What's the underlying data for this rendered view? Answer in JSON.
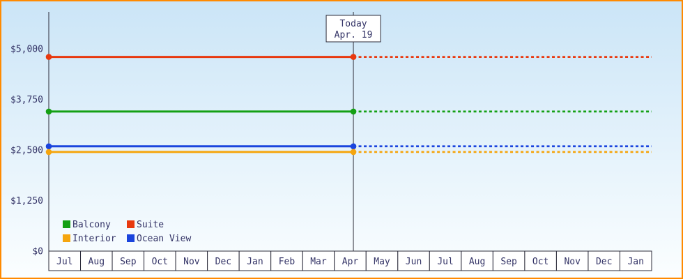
{
  "frame": {
    "border_color": "#ff8a00",
    "background_top": "#cbe5f7",
    "background_bottom": "#fbfeff",
    "text_color": "#333366",
    "axis_color": "#2b2b3a",
    "cell_fill": "#ffffff"
  },
  "chart_data": {
    "type": "line",
    "title": "",
    "xlabel": "",
    "ylabel": "",
    "x_labels": [
      "Jul",
      "Aug",
      "Sep",
      "Oct",
      "Nov",
      "Dec",
      "Jan",
      "Feb",
      "Mar",
      "Apr",
      "May",
      "Jun",
      "Jul",
      "Aug",
      "Sep",
      "Oct",
      "Nov",
      "Dec",
      "Jan"
    ],
    "ylim": [
      0,
      5000
    ],
    "y_ticks": [
      {
        "label": "$0",
        "value": 0
      },
      {
        "label": "$1,250",
        "value": 1250
      },
      {
        "label": "$2,500",
        "value": 2500
      },
      {
        "label": "$3,750",
        "value": 3750
      },
      {
        "label": "$5,000",
        "value": 5000
      }
    ],
    "grid": false,
    "projection_after_today": "dotted",
    "series": [
      {
        "name": "Suite",
        "color": "#e8390f",
        "value": 4800
      },
      {
        "name": "Balcony",
        "color": "#14a014",
        "value": 3450
      },
      {
        "name": "Ocean View",
        "color": "#1a44dd",
        "value": 2590
      },
      {
        "name": "Interior",
        "color": "#f5a50f",
        "value": 2450
      }
    ],
    "legend": {
      "position": "bottom-left",
      "rows": [
        [
          {
            "name": "Balcony",
            "color": "#14a014"
          },
          {
            "name": "Suite",
            "color": "#e8390f"
          }
        ],
        [
          {
            "name": "Interior",
            "color": "#f5a50f"
          },
          {
            "name": "Ocean View",
            "color": "#1a44dd"
          }
        ]
      ]
    },
    "annotations": {
      "today": {
        "line1": "Today",
        "line2": "Apr. 19",
        "month_index": 9,
        "month_fraction": 0.6
      }
    }
  }
}
